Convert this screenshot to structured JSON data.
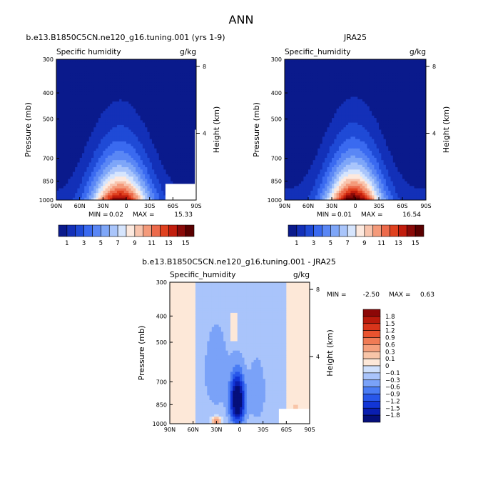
{
  "page_title": "ANN",
  "colors": {
    "lblue_to_red": [
      "#0a1a8c",
      "#1330b8",
      "#1f4ad6",
      "#3a6af0",
      "#5a87f5",
      "#7ea6f8",
      "#a9c5fb",
      "#d6e5fd",
      "#fde9de",
      "#f8c4ad",
      "#f49a7a",
      "#ec6a4b",
      "#e0411f",
      "#c21d0d",
      "#8a0a08",
      "#5a0000"
    ],
    "diff": [
      "#050f7a",
      "#0a1eb0",
      "#1235d6",
      "#2857ea",
      "#4a7cf4",
      "#7aa2f8",
      "#a9c4fb",
      "#cfe0fc",
      "#fde8d8",
      "#f8c5a8",
      "#f5a07d",
      "#f07b55",
      "#e9532f",
      "#d9351b",
      "#b91a0c",
      "#8c0707"
    ],
    "missing": "#ffffff"
  },
  "chart_data": [
    {
      "type": "heatmap",
      "title": "b.e13.B1850C5CN.ne120_g16.tuning.001 (yrs 1-9)",
      "left_label": "Specific humidity",
      "right_label": "g/kg",
      "ylabel": "Pressure (mb)",
      "y2label": "Height (km)",
      "x_ticks": [
        "90N",
        "60N",
        "30N",
        "0",
        "30S",
        "60S",
        "90S"
      ],
      "y_ticks": [
        "300",
        "400",
        "500",
        "700",
        "850",
        "1000"
      ],
      "y_tick_values": [
        300,
        400,
        500,
        700,
        850,
        1000
      ],
      "y2_ticks": [
        "8",
        "4"
      ],
      "y2_tick_values": [
        8,
        4
      ],
      "stats": {
        "min_label": "MIN =",
        "min": "0.02",
        "max_label": "MAX =",
        "max": "15.33"
      },
      "peak": 15.33,
      "center_lat": 8,
      "spread_lat": 36,
      "ylim": [
        300,
        1000
      ],
      "xlim": [
        90,
        -90
      ]
    },
    {
      "type": "heatmap",
      "title": "JRA25",
      "left_label": "Specific_humidity",
      "right_label": "g/kg",
      "ylabel": "Pressure (mb)",
      "y2label": "Height (km)",
      "x_ticks": [
        "90N",
        "60N",
        "30N",
        "0",
        "30S",
        "60S",
        "90S"
      ],
      "y_ticks": [
        "300",
        "400",
        "500",
        "700",
        "850",
        "1000"
      ],
      "y_tick_values": [
        300,
        400,
        500,
        700,
        850,
        1000
      ],
      "y2_ticks": [
        "8",
        "4"
      ],
      "y2_tick_values": [
        8,
        4
      ],
      "stats": {
        "min_label": "MIN =",
        "min": "0.01",
        "max_label": "MAX =",
        "max": "16.54"
      },
      "peak": 16.54,
      "center_lat": 2,
      "spread_lat": 34,
      "ylim": [
        300,
        1000
      ],
      "xlim": [
        90,
        -90
      ]
    },
    {
      "type": "heatmap",
      "title": "b.e13.B1850C5CN.ne120_g16.tuning.001 - JRA25",
      "left_label": "Specific_humidity",
      "right_label": "g/kg",
      "ylabel": "Pressure (mb)",
      "y2label": "Height (km)",
      "x_ticks": [
        "90N",
        "60N",
        "30N",
        "0",
        "30S",
        "60S",
        "90S"
      ],
      "y_ticks": [
        "300",
        "400",
        "500",
        "700",
        "850",
        "1000"
      ],
      "y_tick_values": [
        300,
        400,
        500,
        700,
        850,
        1000
      ],
      "y2_ticks": [
        "8",
        "4"
      ],
      "y2_tick_values": [
        8,
        4
      ],
      "stats": {
        "min_label": "MIN =",
        "min": "-2.50",
        "max_label": "MAX =",
        "max": "0.63"
      },
      "ylim": [
        300,
        1000
      ],
      "xlim": [
        90,
        -90
      ]
    }
  ],
  "colorbar_abs": {
    "levels": [
      1,
      2,
      3,
      4,
      5,
      6,
      7,
      8,
      9,
      10,
      11,
      12,
      13,
      14,
      15
    ],
    "labels": [
      "1",
      "3",
      "5",
      "7",
      "9",
      "11",
      "13",
      "15"
    ]
  },
  "colorbar_diff": {
    "levels": [
      -1.8,
      -1.5,
      -1.2,
      -0.9,
      -0.6,
      -0.3,
      -0.1,
      0,
      0.1,
      0.3,
      0.6,
      0.9,
      1.2,
      1.5,
      1.8
    ],
    "labels": [
      "1.8",
      "1.5",
      "1.2",
      "0.9",
      "0.6",
      "0.3",
      "0.1",
      "0",
      "−0.1",
      "−0.3",
      "−0.6",
      "−0.9",
      "−1.2",
      "−1.5",
      "−1.8"
    ]
  }
}
